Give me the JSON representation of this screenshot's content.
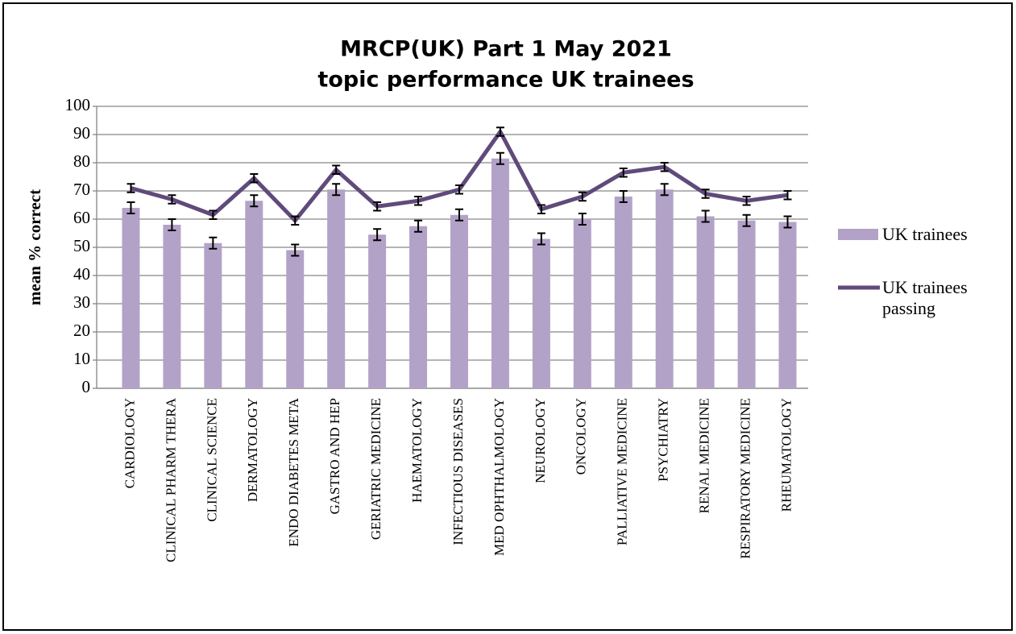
{
  "chart_data": {
    "type": "bar",
    "title": "MRCP(UK) Part 1 May 2021",
    "subtitle": "topic performance UK trainees",
    "y_label": "mean % correct",
    "categories": [
      "CARDIOLOGY",
      "CLINICAL PHARM THERA",
      "CLINICAL SCIENCE",
      "DERMATOLOGY",
      "ENDO DIABETES META",
      "GASTRO AND HEP",
      "GERIATRIC MEDICINE",
      "HAEMATOLOGY",
      "INFECTIOUS DISEASES",
      "MED OPHTHALMOLOGY",
      "NEUROLOGY",
      "ONCOLOGY",
      "PALLIATIVE MEDICINE",
      "PSYCHIATRY",
      "RENAL MEDICINE",
      "RESPIRATORY MEDICINE",
      "RHEUMATOLOGY"
    ],
    "series": [
      {
        "name": "UK trainees",
        "type": "bar",
        "color": "#b3a2c7",
        "values": [
          64,
          58,
          51.5,
          66.5,
          49,
          70.5,
          54.5,
          57.5,
          61.5,
          81.5,
          53,
          60,
          68,
          70.5,
          61,
          59.5,
          59
        ],
        "errors": [
          2,
          2,
          2,
          2,
          2,
          2,
          2,
          2,
          2,
          2,
          2,
          2,
          2,
          2,
          2,
          2,
          2
        ]
      },
      {
        "name": "UK trainees passing",
        "type": "line",
        "color": "#604a7b",
        "values": [
          71,
          67,
          61.5,
          74.5,
          59.5,
          77.5,
          64.5,
          66.5,
          70.5,
          91,
          63.5,
          68,
          76.5,
          78.5,
          69,
          66.5,
          68.5
        ],
        "errors": [
          1.5,
          1.5,
          1.5,
          1.5,
          1.5,
          1.5,
          1.5,
          1.5,
          1.5,
          1.5,
          1.5,
          1.5,
          1.5,
          1.5,
          1.5,
          1.5,
          1.5
        ]
      }
    ],
    "ylim": [
      0,
      100
    ],
    "yticks": [
      0,
      10,
      20,
      30,
      40,
      50,
      60,
      70,
      80,
      90,
      100
    ],
    "grid": true,
    "legend": "right"
  }
}
